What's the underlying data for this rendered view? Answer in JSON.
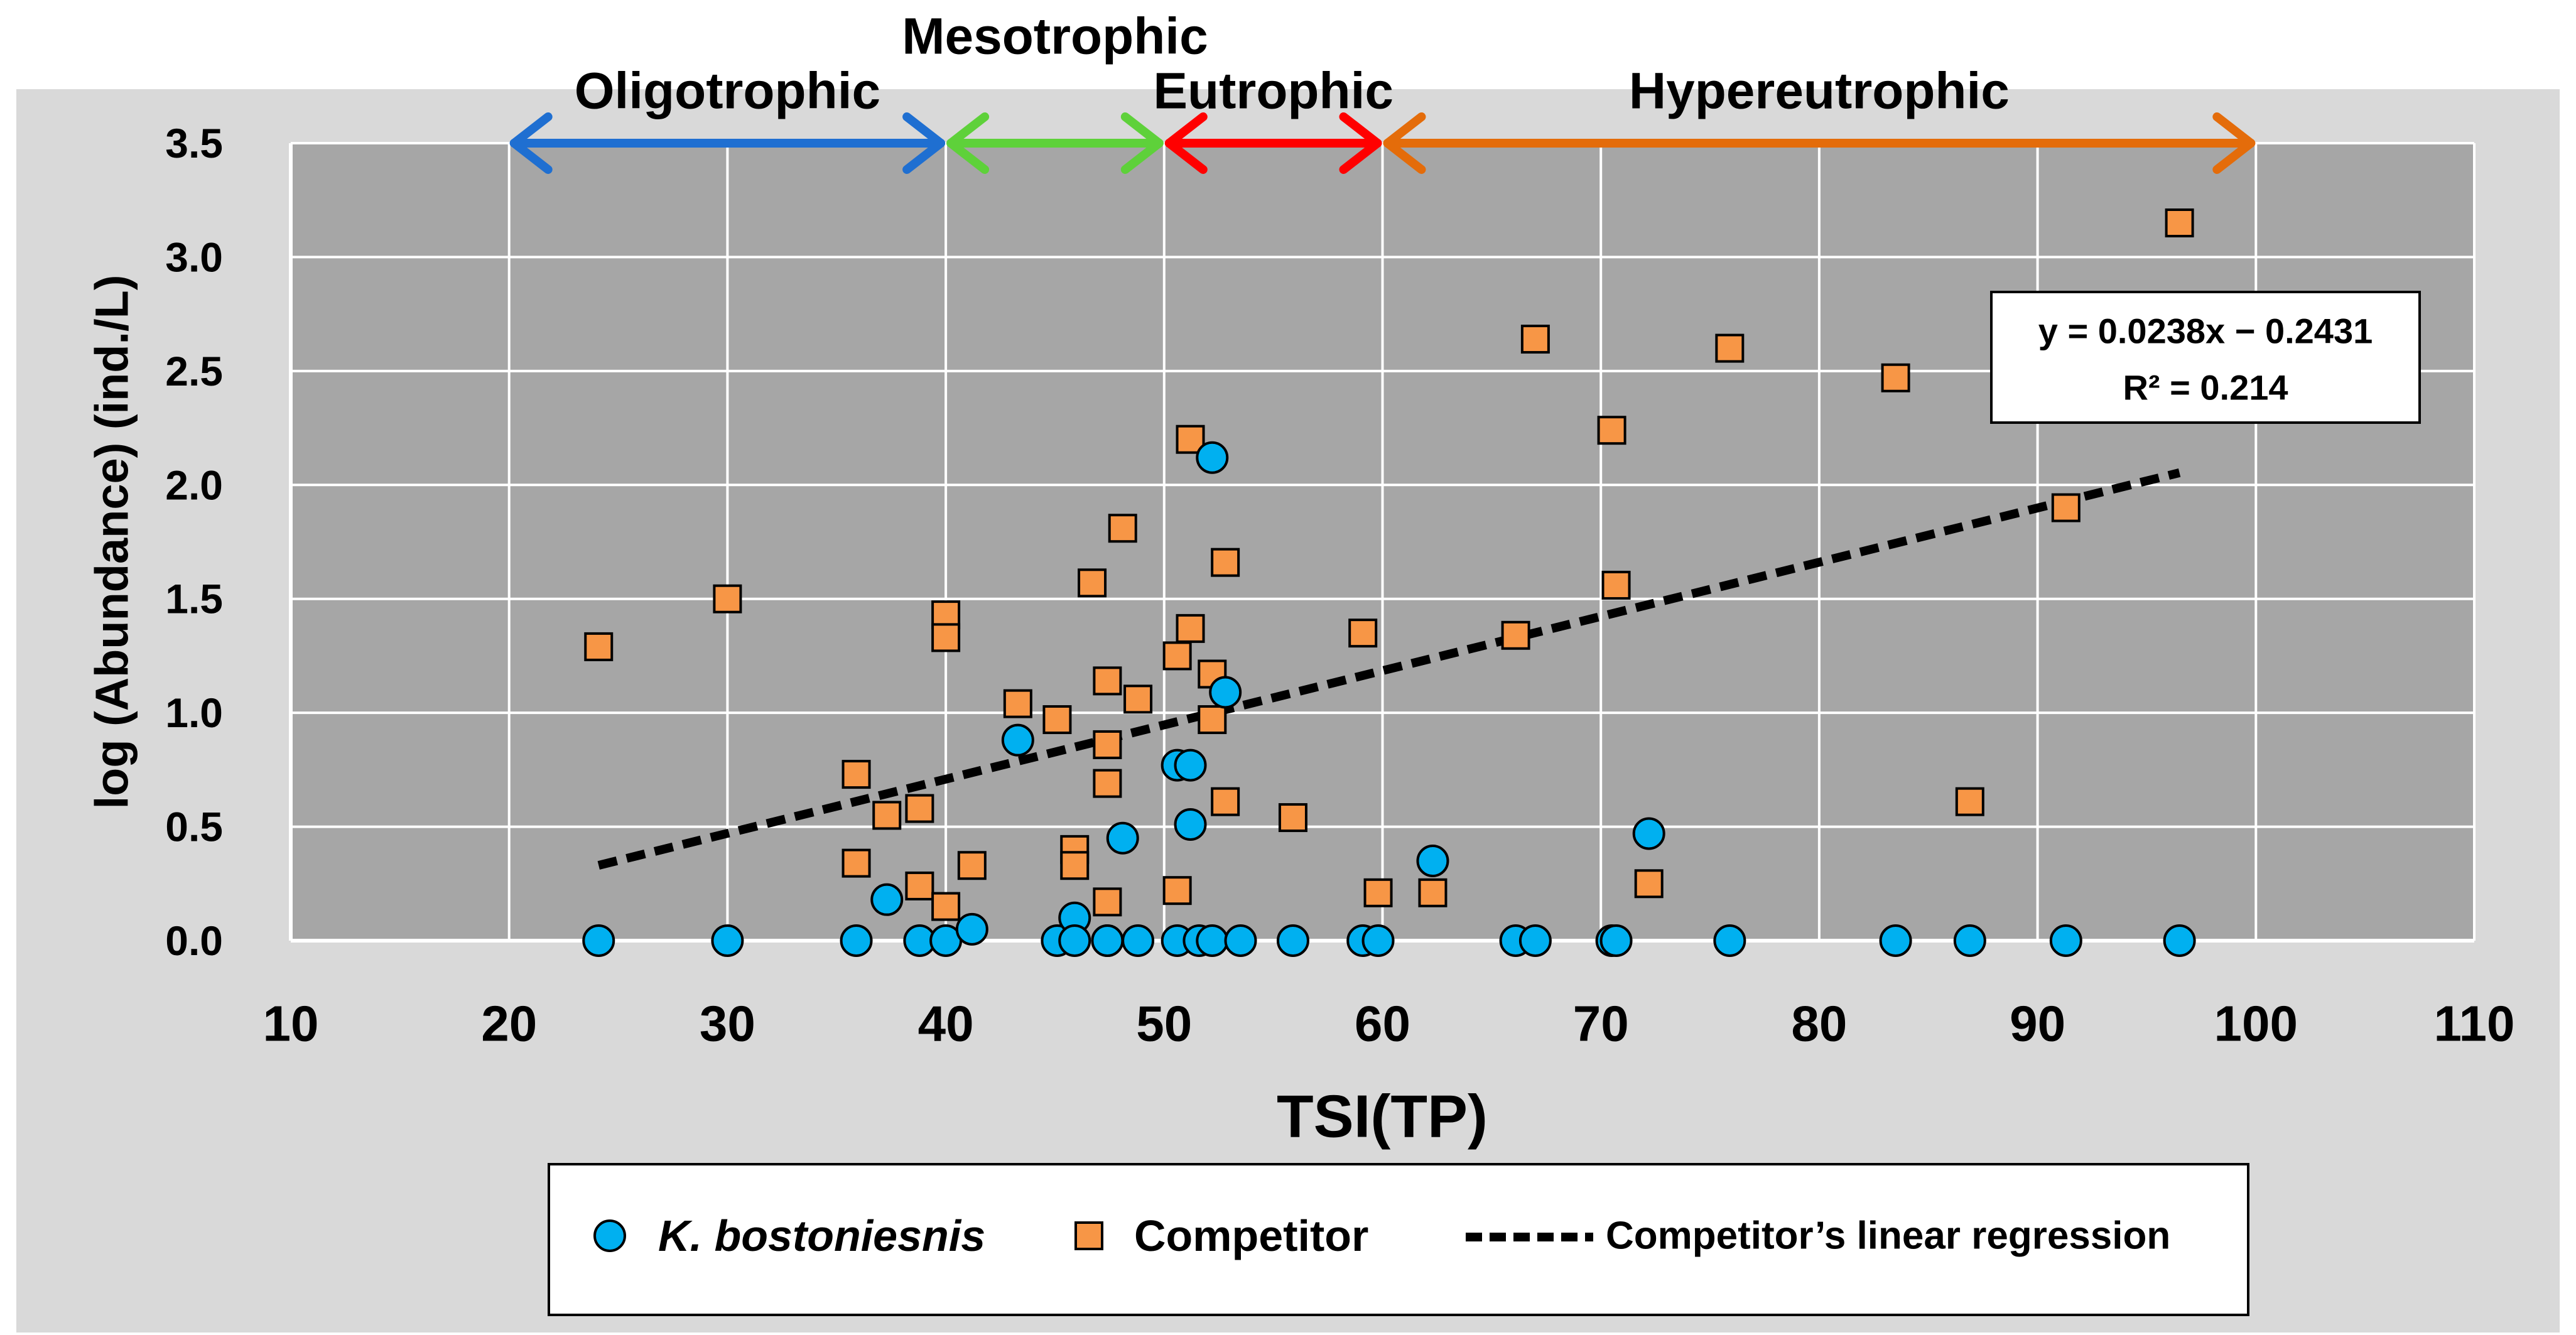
{
  "colors": {
    "page_background": "#ffffff",
    "chart_background": "#d9d9d9",
    "plot_background": "#a6a6a6",
    "grid": "#ffffff",
    "k_bostoniensis": "#00b0f0",
    "competitor": "#f79646",
    "regression": "#000000",
    "oligotrophic": "#1f6fd1",
    "mesotrophic": "#5ed13a",
    "eutrophic": "#ff0000",
    "hypereutrophic": "#e46c0a"
  },
  "chart_data": {
    "type": "scatter",
    "title": "",
    "xlabel": "TSI(TP)",
    "ylabel": "log (Abundance) (ind./L)",
    "xlim": [
      10,
      110
    ],
    "ylim": [
      0,
      3.5
    ],
    "xticks": [
      10,
      20,
      30,
      40,
      50,
      60,
      70,
      80,
      90,
      100,
      110
    ],
    "xtick_labels": [
      "10",
      "20",
      "30",
      "40",
      "50",
      "60",
      "70",
      "80",
      "90",
      "100",
      "110"
    ],
    "yticks": [
      0,
      0.5,
      1,
      1.5,
      2,
      2.5,
      3,
      3.5
    ],
    "ytick_labels": [
      "0.0",
      "0.5",
      "1.0",
      "1.5",
      "2.0",
      "2.5",
      "3.0",
      "3.5"
    ],
    "grid": true,
    "trophic_states": [
      {
        "label": "Oligotrophic",
        "from": 20,
        "to": 40,
        "color_key": "oligotrophic"
      },
      {
        "label": "Mesotrophic",
        "from": 40,
        "to": 50,
        "color_key": "mesotrophic"
      },
      {
        "label": "Eutrophic",
        "from": 50,
        "to": 60,
        "color_key": "eutrophic"
      },
      {
        "label": "Hypereutrophic",
        "from": 60,
        "to": 100,
        "color_key": "hypereutrophic"
      }
    ],
    "series": [
      {
        "name": "Competitor",
        "marker": "square",
        "points": [
          [
            24.1,
            1.29
          ],
          [
            30.0,
            1.5
          ],
          [
            35.9,
            0.73
          ],
          [
            35.9,
            0.34
          ],
          [
            37.3,
            0.55
          ],
          [
            38.8,
            0.58
          ],
          [
            38.8,
            0.24
          ],
          [
            40.0,
            1.43
          ],
          [
            40.0,
            1.33
          ],
          [
            40.0,
            0.15
          ],
          [
            41.2,
            0.33
          ],
          [
            43.3,
            1.04
          ],
          [
            45.1,
            0.97
          ],
          [
            45.9,
            0.4
          ],
          [
            45.9,
            0.33
          ],
          [
            46.7,
            1.57
          ],
          [
            47.4,
            1.14
          ],
          [
            47.4,
            0.86
          ],
          [
            47.4,
            0.69
          ],
          [
            47.4,
            0.17
          ],
          [
            48.1,
            1.81
          ],
          [
            48.8,
            1.06
          ],
          [
            50.6,
            1.25
          ],
          [
            50.6,
            0.22
          ],
          [
            51.2,
            2.2
          ],
          [
            51.2,
            1.37
          ],
          [
            52.2,
            1.17
          ],
          [
            52.2,
            0.97
          ],
          [
            52.8,
            1.66
          ],
          [
            52.8,
            0.61
          ],
          [
            55.9,
            0.54
          ],
          [
            59.1,
            1.35
          ],
          [
            59.8,
            0.21
          ],
          [
            62.3,
            0.21
          ],
          [
            66.1,
            1.34
          ],
          [
            67.0,
            2.64
          ],
          [
            70.5,
            2.24
          ],
          [
            70.7,
            1.56
          ],
          [
            72.2,
            0.25
          ],
          [
            75.9,
            2.6
          ],
          [
            83.5,
            2.47
          ],
          [
            86.9,
            0.61
          ],
          [
            91.3,
            1.9
          ],
          [
            96.5,
            3.15
          ]
        ]
      },
      {
        "name": "K. bostoniesnis",
        "marker": "circle",
        "points": [
          [
            24.1,
            0.0
          ],
          [
            30.0,
            0.0
          ],
          [
            35.9,
            0.0
          ],
          [
            37.3,
            0.18
          ],
          [
            38.8,
            0.0
          ],
          [
            40.0,
            0.0
          ],
          [
            41.2,
            0.05
          ],
          [
            43.3,
            0.88
          ],
          [
            45.1,
            0.0
          ],
          [
            45.9,
            0.1
          ],
          [
            45.9,
            0.0
          ],
          [
            47.4,
            0.0
          ],
          [
            47.4,
            0.0
          ],
          [
            48.1,
            0.45
          ],
          [
            48.8,
            0.0
          ],
          [
            50.6,
            0.77
          ],
          [
            50.6,
            0.0
          ],
          [
            51.2,
            0.77
          ],
          [
            51.2,
            0.51
          ],
          [
            51.6,
            0.0
          ],
          [
            52.2,
            2.12
          ],
          [
            52.2,
            0.0
          ],
          [
            52.8,
            1.09
          ],
          [
            53.5,
            0.0
          ],
          [
            55.9,
            0.0
          ],
          [
            59.1,
            0.0
          ],
          [
            59.8,
            0.0
          ],
          [
            62.3,
            0.35
          ],
          [
            66.1,
            0.0
          ],
          [
            67.0,
            0.0
          ],
          [
            70.5,
            0.0
          ],
          [
            70.7,
            0.0
          ],
          [
            72.2,
            0.47
          ],
          [
            75.9,
            0.0
          ],
          [
            83.5,
            0.0
          ],
          [
            86.9,
            0.0
          ],
          [
            91.3,
            0.0
          ],
          [
            96.5,
            0.0
          ]
        ]
      }
    ],
    "regression": {
      "name": "Competitor’s linear regression",
      "slope": 0.0238,
      "intercept": -0.2431,
      "x_range": [
        24.1,
        96.5
      ],
      "equation_label": "y = 0.0238x − 0.2431",
      "r2_label": "R² = 0.214"
    },
    "legend": {
      "position": "bottom",
      "items": [
        {
          "label": "K. bostoniesnis",
          "marker": "circle",
          "italic": true
        },
        {
          "label": "Competitor",
          "marker": "square",
          "italic": false
        },
        {
          "label": "Competitor’s linear regression",
          "marker": "dashed-line",
          "italic": false
        }
      ]
    }
  }
}
